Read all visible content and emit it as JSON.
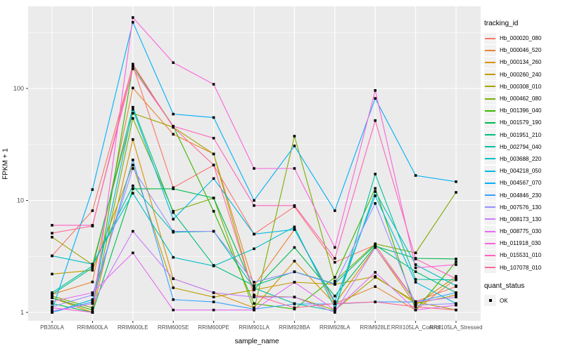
{
  "chart_data": {
    "type": "line",
    "title": "",
    "xlabel": "sample_name",
    "ylabel": "FPKM + 1",
    "y_scale": "log10",
    "y_ticks": [
      "1",
      "10",
      "100"
    ],
    "ylim": [
      1,
      540
    ],
    "grid": true,
    "legend_position": "right",
    "legend_title": "tracking_id",
    "point_marker": "black-square",
    "panel_bg": "#EBEBEB",
    "grid_color": "#FFFFFF",
    "axis_text_color": "#4D4D4D",
    "legend_key_bg": "#F2F2F2",
    "x_categories": [
      "PB350LA",
      "RRIM600LA",
      "RRIM600LE",
      "RRIM600SE",
      "RRIM600PE",
      "RRIM901LA",
      "RRIM928BA",
      "RRIM928LA",
      "RRIM928LE",
      "RRII105LA_Control",
      "RRII105LA_Stressed"
    ],
    "series": [
      {
        "name": "Hb_000020_080",
        "color": "#F8766D",
        "values": [
          3.2,
          8.1,
          160,
          13,
          20.7,
          5.0,
          8.8,
          2.8,
          4.0,
          1.25,
          1.7
        ]
      },
      {
        "name": "Hb_000046_520",
        "color": "#EA8331",
        "values": [
          1.45,
          1.87,
          101,
          39,
          26,
          1.73,
          5.5,
          1.2,
          1.7,
          1.05,
          2.0
        ]
      },
      {
        "name": "Hb_000134_260",
        "color": "#D89000",
        "values": [
          1.35,
          1.0,
          35,
          2.0,
          1.5,
          1.1,
          2.87,
          1.19,
          3.8,
          1.16,
          2.1
        ]
      },
      {
        "name": "Hb_000260_240",
        "color": "#C09B00",
        "values": [
          2.2,
          2.38,
          20.7,
          1.66,
          1.37,
          1.59,
          1.86,
          1.78,
          2.1,
          1.2,
          1.43
        ]
      },
      {
        "name": "Hb_000308_010",
        "color": "#A3A500",
        "values": [
          4.7,
          2.67,
          60,
          45,
          26,
          1.4,
          1.37,
          1.05,
          2.06,
          1.24,
          1.05
        ]
      },
      {
        "name": "Hb_000462_080",
        "color": "#7CAE00",
        "values": [
          1.4,
          1.1,
          54,
          8.0,
          10.5,
          1.05,
          37.5,
          1.9,
          4.1,
          3.4,
          11.8
        ]
      },
      {
        "name": "Hb_001396_040",
        "color": "#39B600",
        "values": [
          1.35,
          1.05,
          158,
          46,
          8.0,
          1.2,
          1.07,
          2.06,
          12.8,
          1.05,
          2.83
        ]
      },
      {
        "name": "Hb_001579_190",
        "color": "#00BB4E",
        "values": [
          1.2,
          1.0,
          12.7,
          12.7,
          10.5,
          1.6,
          3.8,
          1.4,
          3.9,
          3.04,
          3.0
        ]
      },
      {
        "name": "Hb_001951_210",
        "color": "#00BF7D",
        "values": [
          1.45,
          2.5,
          68,
          7.8,
          2.63,
          1.73,
          2.31,
          1.8,
          4.0,
          2.31,
          1.5
        ]
      },
      {
        "name": "Hb_002794_040",
        "color": "#00C1A3",
        "values": [
          1.5,
          2.6,
          13.5,
          5.2,
          5.3,
          1.65,
          1.2,
          1.03,
          17.2,
          1.97,
          1.95
        ]
      },
      {
        "name": "Hb_003688_220",
        "color": "#00BFC4",
        "values": [
          3.2,
          2.7,
          11.6,
          3.1,
          2.6,
          3.7,
          5.8,
          1.1,
          12.0,
          2.67,
          1.73
        ]
      },
      {
        "name": "Hb_004218_050",
        "color": "#00BAE0",
        "values": [
          1.0,
          1.3,
          65,
          6.8,
          15.7,
          5.0,
          5.5,
          1.25,
          11.0,
          1.86,
          1.2
        ]
      },
      {
        "name": "Hb_004567_070",
        "color": "#00B0F6",
        "values": [
          1.05,
          12.5,
          390,
          59,
          55,
          10.0,
          30.7,
          8.1,
          81.5,
          16.7,
          14.7
        ]
      },
      {
        "name": "Hb_004846_230",
        "color": "#35A2FF",
        "values": [
          1.0,
          1.24,
          23,
          1.3,
          1.24,
          1.07,
          1.19,
          1.19,
          1.24,
          1.24,
          1.5
        ]
      },
      {
        "name": "Hb_007576_130",
        "color": "#9590FF",
        "values": [
          1.12,
          1.43,
          19.3,
          5.3,
          5.3,
          1.86,
          2.3,
          1.78,
          9.4,
          1.16,
          1.2
        ]
      },
      {
        "name": "Hb_008173_130",
        "color": "#C77CFF",
        "values": [
          1.03,
          1.2,
          5.3,
          2.0,
          1.5,
          1.37,
          1.37,
          1.0,
          3.8,
          1.24,
          1.37
        ]
      },
      {
        "name": "Hb_008775_030",
        "color": "#E76BF3",
        "values": [
          1.25,
          1.5,
          3.4,
          1.05,
          1.05,
          1.05,
          1.86,
          1.05,
          2.28,
          1.05,
          1.16
        ]
      },
      {
        "name": "Hb_011918_030",
        "color": "#FA62DB",
        "values": [
          1.1,
          1.0,
          430,
          170,
          109,
          19.3,
          19.3,
          3.8,
          96,
          2.5,
          2.67
        ]
      },
      {
        "name": "Hb_015531_010",
        "color": "#FF62BC",
        "values": [
          6.0,
          6.0,
          150,
          46,
          36,
          9.0,
          9.0,
          3.04,
          51.7,
          3.0,
          2.0
        ]
      },
      {
        "name": "Hb_107078_010",
        "color": "#FF6A98",
        "values": [
          5.1,
          5.9,
          165,
          45,
          20.7,
          1.43,
          1.1,
          1.2,
          1.24,
          1.12,
          1.05
        ]
      }
    ],
    "quant_status": {
      "title": "quant_status",
      "items": [
        {
          "label": "OK",
          "marker": "black-square"
        }
      ]
    }
  }
}
